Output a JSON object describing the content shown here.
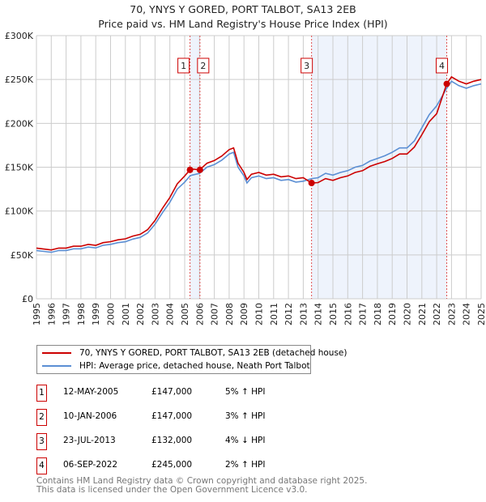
{
  "title_line1": "70, YNYS Y GORED, PORT TALBOT, SA13 2EB",
  "title_line2": "Price paid vs. HM Land Registry's House Price Index (HPI)",
  "legend": {
    "property": "70, YNYS Y GORED, PORT TALBOT, SA13 2EB (detached house)",
    "hpi": "HPI: Average price, detached house, Neath Port Talbot"
  },
  "colors": {
    "property": "#cc0000",
    "hpi": "#5b8fd4",
    "shade": "#eef3fc"
  },
  "sales": [
    {
      "num": "1",
      "date": "12-MAY-2005",
      "price": "£147,000",
      "hpi": "5% ↑ HPI",
      "x": 2005.36,
      "value": 147
    },
    {
      "num": "2",
      "date": "10-JAN-2006",
      "price": "£147,000",
      "hpi": "3% ↑ HPI",
      "x": 2006.03,
      "value": 147
    },
    {
      "num": "3",
      "date": "23-JUL-2013",
      "price": "£132,000",
      "hpi": "4% ↓ HPI",
      "x": 2013.56,
      "value": 132
    },
    {
      "num": "4",
      "date": "06-SEP-2022",
      "price": "£245,000",
      "hpi": "2% ↑ HPI",
      "x": 2022.68,
      "value": 245
    }
  ],
  "footer": {
    "line1": "Contains HM Land Registry data © Crown copyright and database right 2025.",
    "line2": "This data is licensed under the Open Government Licence v3.0."
  },
  "chart_data": {
    "type": "line",
    "xlim": [
      1995,
      2025
    ],
    "ylim": [
      0,
      300
    ],
    "yticks": [
      0,
      50,
      100,
      150,
      200,
      250,
      300
    ],
    "ytick_labels": [
      "£0",
      "£50K",
      "£100K",
      "£150K",
      "£200K",
      "£250K",
      "£300K"
    ],
    "xticks": [
      1995,
      1996,
      1997,
      1998,
      1999,
      2000,
      2001,
      2002,
      2003,
      2004,
      2005,
      2006,
      2007,
      2008,
      2009,
      2010,
      2011,
      2012,
      2013,
      2014,
      2015,
      2016,
      2017,
      2018,
      2019,
      2020,
      2021,
      2022,
      2023,
      2024,
      2025
    ],
    "grid": true,
    "x": [
      1995,
      1995.5,
      1996,
      1996.5,
      1997,
      1997.5,
      1998,
      1998.5,
      1999,
      1999.5,
      2000,
      2000.5,
      2001,
      2001.5,
      2002,
      2002.5,
      2003,
      2003.5,
      2004,
      2004.5,
      2005,
      2005.36,
      2005.5,
      2006,
      2006.5,
      2007,
      2007.5,
      2008,
      2008.3,
      2008.6,
      2009,
      2009.2,
      2009.5,
      2010,
      2010.5,
      2011,
      2011.5,
      2012,
      2012.5,
      2013,
      2013.56,
      2014,
      2014.5,
      2015,
      2015.5,
      2016,
      2016.5,
      2017,
      2017.5,
      2018,
      2018.5,
      2019,
      2019.5,
      2020,
      2020.5,
      2021,
      2021.5,
      2022,
      2022.68,
      2023,
      2023.5,
      2024,
      2024.5,
      2025
    ],
    "series": [
      {
        "name": "hpi",
        "values": [
          55,
          54,
          53,
          55,
          55,
          57,
          57,
          59,
          58,
          61,
          62,
          64,
          65,
          68,
          70,
          75,
          85,
          98,
          110,
          125,
          133,
          140,
          141,
          143,
          150,
          153,
          158,
          165,
          167,
          150,
          140,
          132,
          138,
          140,
          137,
          138,
          135,
          136,
          133,
          134,
          137,
          138,
          143,
          141,
          144,
          146,
          150,
          152,
          157,
          160,
          163,
          167,
          172,
          172,
          180,
          195,
          210,
          220,
          240,
          248,
          243,
          240,
          243,
          245
        ]
      },
      {
        "name": "property",
        "values": [
          57.8,
          56.7,
          55.7,
          57.8,
          57.8,
          59.9,
          59.9,
          62,
          60.9,
          64,
          65.1,
          67.2,
          68.3,
          71.4,
          73.5,
          78.8,
          89.3,
          103,
          115.5,
          131,
          140,
          147,
          148,
          147,
          154.5,
          157.6,
          162.7,
          170,
          172,
          154.5,
          144,
          136,
          142,
          144,
          141,
          142,
          139,
          140,
          137,
          138,
          132,
          132.5,
          137,
          135,
          138,
          140,
          144,
          146,
          151,
          154,
          156.5,
          160,
          165,
          165,
          173,
          187,
          202,
          211,
          245,
          253,
          248,
          245,
          248,
          250
        ]
      }
    ]
  }
}
